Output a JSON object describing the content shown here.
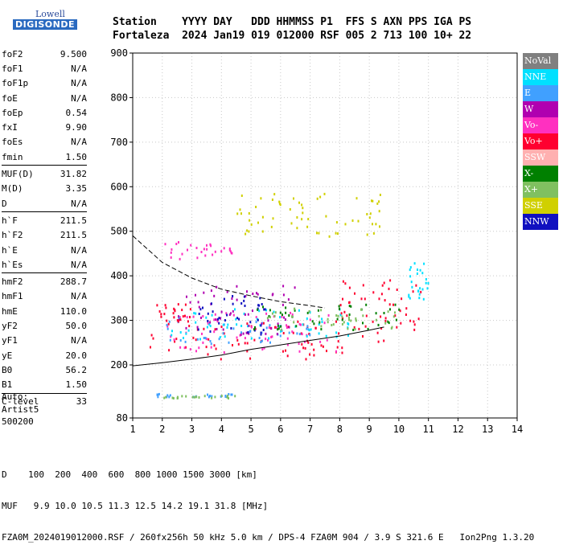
{
  "logo": {
    "line1": "Lowell",
    "line2": "DIGISONDE"
  },
  "header": {
    "line1": "Station    YYYY DAY   DDD HHMMSS P1  FFS S AXN PPS IGA PS",
    "line2": "Fortaleza  2024 Jan19 019 012000 RSF 005 2 713 100 10+ 22"
  },
  "params": [
    {
      "name": "foF2",
      "value": "9.500"
    },
    {
      "name": "foF1",
      "value": "N/A"
    },
    {
      "name": "foF1p",
      "value": "N/A"
    },
    {
      "name": "foE",
      "value": "N/A"
    },
    {
      "name": "foEp",
      "value": "0.54"
    },
    {
      "name": "fxI",
      "value": "9.90"
    },
    {
      "name": "foEs",
      "value": "N/A"
    },
    {
      "name": "fmin",
      "value": "1.50"
    },
    {
      "sep": true
    },
    {
      "name": "MUF(D)",
      "value": "31.82"
    },
    {
      "name": "M(D)",
      "value": "3.35"
    },
    {
      "name": "D",
      "value": "N/A"
    },
    {
      "sep": true
    },
    {
      "name": "h`F",
      "value": "211.5"
    },
    {
      "name": "h`F2",
      "value": "211.5"
    },
    {
      "name": "h`E",
      "value": "N/A"
    },
    {
      "name": "h`Es",
      "value": "N/A"
    },
    {
      "sep": true
    },
    {
      "name": "hmF2",
      "value": "288.7"
    },
    {
      "name": "hmF1",
      "value": "N/A"
    },
    {
      "name": "hmE",
      "value": "110.0"
    },
    {
      "name": "yF2",
      "value": "50.0"
    },
    {
      "name": "yF1",
      "value": "N/A"
    },
    {
      "name": "yE",
      "value": "20.0"
    },
    {
      "name": "B0",
      "value": "56.2"
    },
    {
      "name": "B1",
      "value": "1.50"
    },
    {
      "sep": true
    },
    {
      "name": "C-level",
      "value": "33"
    }
  ],
  "auto": {
    "l1": "Auto:",
    "l2": "Artist5",
    "l3": "500200"
  },
  "legend": [
    {
      "label": "NoVal",
      "color": "#808080"
    },
    {
      "label": "NNE",
      "color": "#00e0ff"
    },
    {
      "label": "E",
      "color": "#40a0ff"
    },
    {
      "label": "W",
      "color": "#b000b0"
    },
    {
      "label": "Vo-",
      "color": "#ff30c0"
    },
    {
      "label": "Vo+",
      "color": "#ff0030"
    },
    {
      "label": "SSW",
      "color": "#ffb0b0"
    },
    {
      "label": "X-",
      "color": "#008000"
    },
    {
      "label": "X+",
      "color": "#80c060"
    },
    {
      "label": "SSE",
      "color": "#d0d000"
    },
    {
      "label": "NNW",
      "color": "#1010c0"
    }
  ],
  "footer": {
    "l1": "D    100  200  400  600  800 1000 1500 3000 [km]",
    "l2": "MUF   9.9 10.0 10.5 11.3 12.5 14.2 19.1 31.8 [MHz]",
    "l3": "FZA0M_2024019012000.RSF / 260fx256h 50 kHz 5.0 km / DPS-4 FZA0M 904 / 3.9 S 321.6 E   Ion2Png 1.3.20"
  },
  "chart_data": {
    "type": "scatter",
    "xlim": [
      1,
      14
    ],
    "ylim": [
      80,
      900
    ],
    "xticks": [
      "1",
      "2",
      "3",
      "4",
      "5",
      "6",
      "7",
      "8",
      "9",
      "10",
      "11",
      "12",
      "13",
      "14"
    ],
    "yticks": [
      "80",
      "200",
      "300",
      "400",
      "500",
      "600",
      "700",
      "800",
      "900"
    ],
    "y_scale": "nonlinear (80 to 200 compressed)",
    "grid": true,
    "clusters": [
      {
        "color": "#ff0030",
        "fmin": 1.5,
        "fmax": 9.5,
        "hmin": 215,
        "hmax": 300
      },
      {
        "color": "#ff30c0",
        "fmin": 2.0,
        "fmax": 8.0,
        "hmin": 230,
        "hmax": 320
      },
      {
        "color": "#40a0ff",
        "fmin": 2.0,
        "fmax": 7.0,
        "hmin": 250,
        "hmax": 300
      },
      {
        "color": "#00e0ff",
        "fmin": 2.2,
        "fmax": 8.5,
        "hmin": 260,
        "hmax": 330
      },
      {
        "color": "#b000b0",
        "fmin": 2.5,
        "fmax": 6.5,
        "hmin": 270,
        "hmax": 380
      },
      {
        "color": "#1010c0",
        "fmin": 3.0,
        "fmax": 5.5,
        "hmin": 270,
        "hmax": 360
      },
      {
        "color": "#ff0030",
        "fmin": 8.0,
        "fmax": 10.8,
        "hmin": 280,
        "hmax": 400
      },
      {
        "color": "#00e0ff",
        "fmin": 10.3,
        "fmax": 11.0,
        "hmin": 350,
        "hmax": 440
      },
      {
        "color": "#008000",
        "fmin": 5.0,
        "fmax": 10.0,
        "hmin": 280,
        "hmax": 340
      },
      {
        "color": "#80c060",
        "fmin": 5.5,
        "fmax": 10.0,
        "hmin": 280,
        "hmax": 330
      },
      {
        "color": "#ff30c0",
        "fmin": 2.0,
        "fmax": 4.5,
        "hmin": 440,
        "hmax": 480
      },
      {
        "color": "#d0d000",
        "fmin": 4.5,
        "fmax": 9.5,
        "hmin": 490,
        "hmax": 590
      },
      {
        "color": "#ff0030",
        "fmin": 1.7,
        "fmax": 3.0,
        "hmin": 300,
        "hmax": 340
      },
      {
        "color": "#40a0ff",
        "fmin": 1.7,
        "fmax": 4.6,
        "hmin": 130,
        "hmax": 137
      },
      {
        "color": "#80c060",
        "fmin": 2.0,
        "fmax": 4.6,
        "hmin": 127,
        "hmax": 133
      }
    ],
    "dashed_curve": [
      [
        1,
        490
      ],
      [
        2,
        430
      ],
      [
        3,
        395
      ],
      [
        4,
        370
      ],
      [
        5,
        355
      ],
      [
        6,
        342
      ],
      [
        7,
        333
      ],
      [
        7.5,
        328
      ]
    ],
    "solid_curve": [
      [
        1,
        198
      ],
      [
        2,
        205
      ],
      [
        3,
        213
      ],
      [
        4,
        222
      ],
      [
        5,
        235
      ],
      [
        6,
        245
      ],
      [
        7,
        255
      ],
      [
        8,
        265
      ],
      [
        9,
        278
      ],
      [
        9.5,
        285
      ]
    ]
  }
}
